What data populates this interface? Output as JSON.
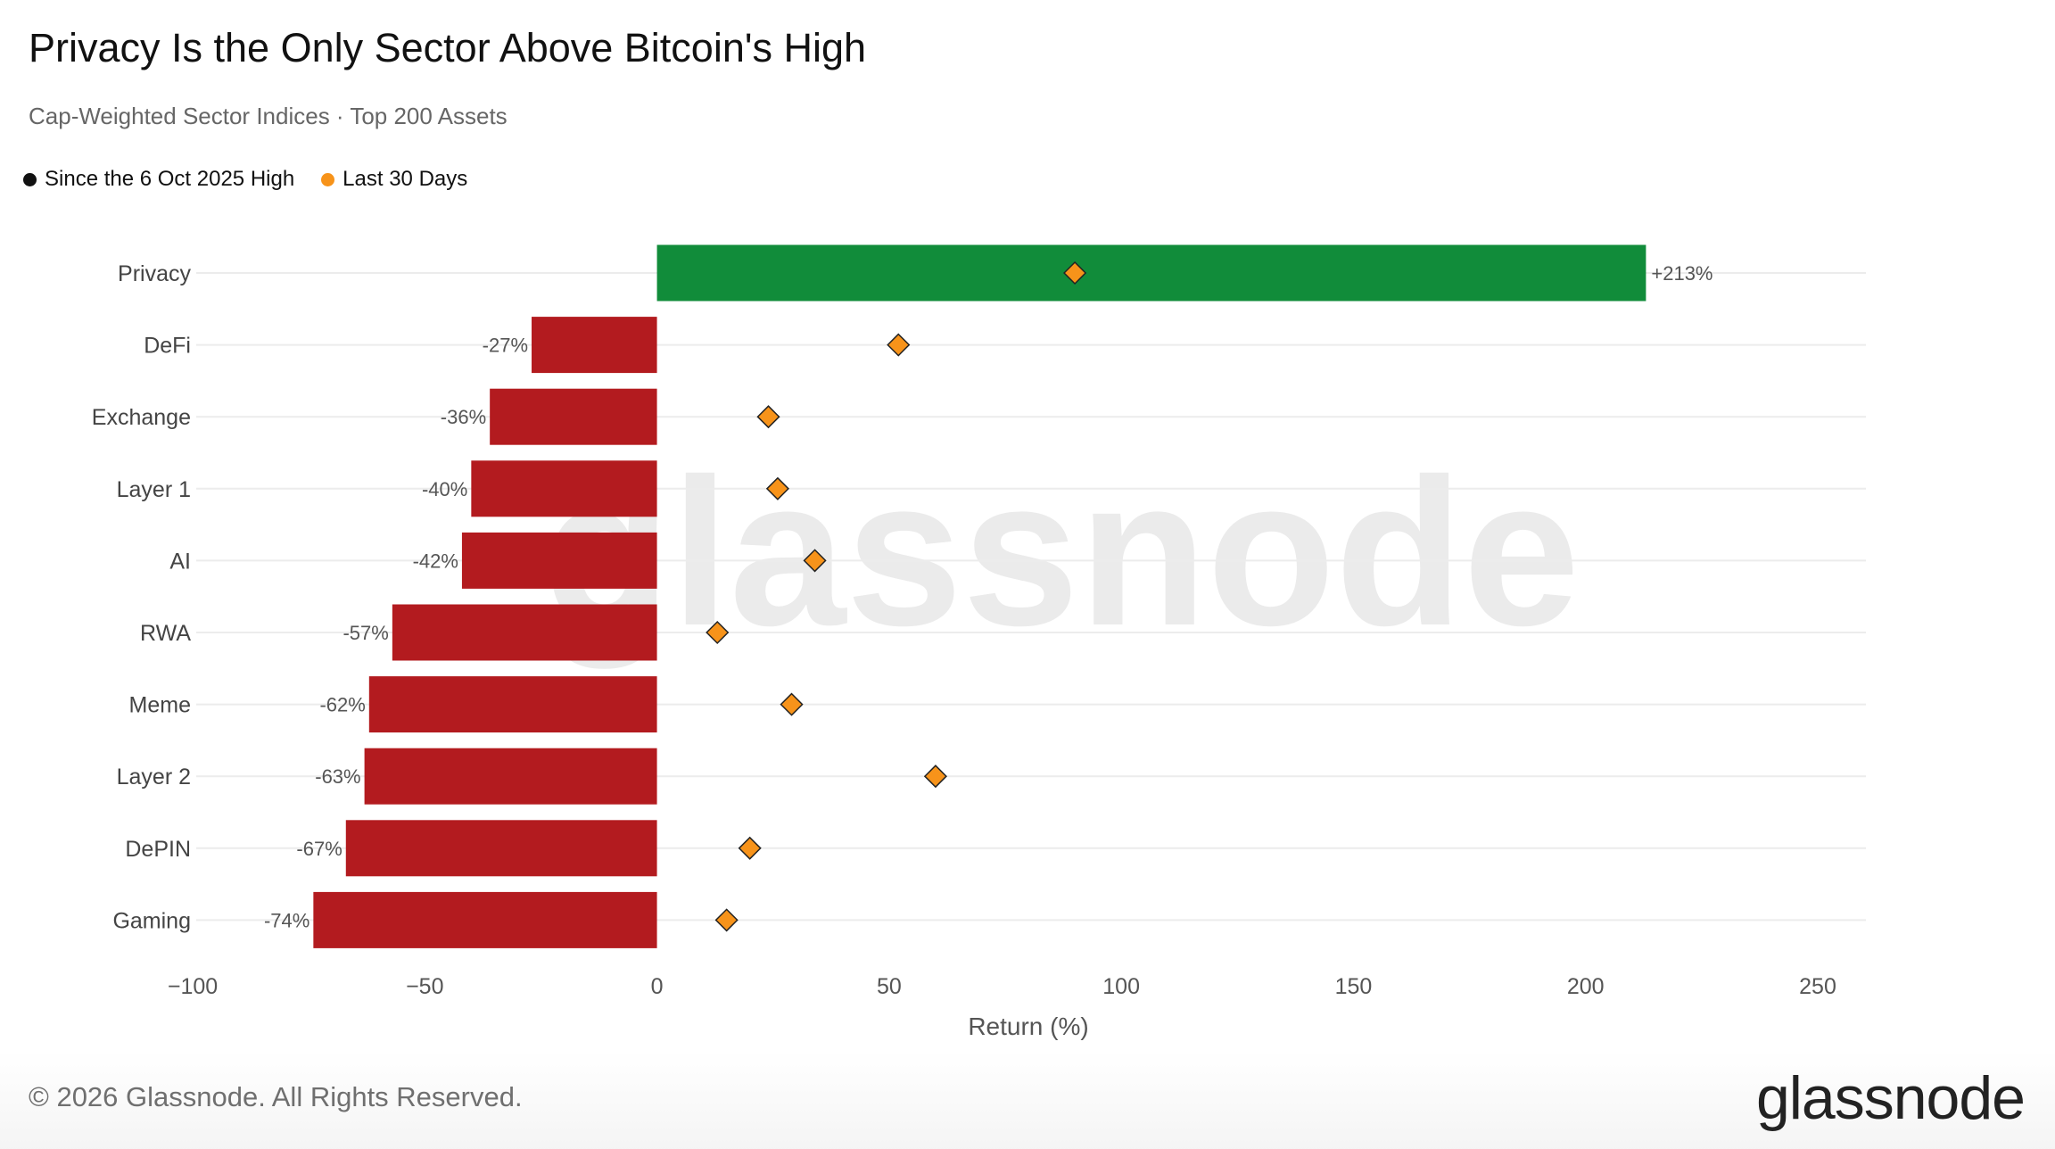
{
  "header": {
    "title": "Privacy Is the Only Sector Above Bitcoin's High",
    "subtitle": "Cap-Weighted Sector Indices · Top 200 Assets"
  },
  "legend": [
    {
      "label": "Since the 6 Oct 2025 High",
      "color": "#111111"
    },
    {
      "label": "Last 30 Days",
      "color": "#f7931a"
    }
  ],
  "colors": {
    "positive_bar": "#118c3a",
    "negative_bar": "#b31b1f",
    "marker": "#f7931a",
    "gridline": "#ececec",
    "watermark": "#ebebeb"
  },
  "watermark": "glassnode",
  "footer": {
    "copyright": "© 2026 Glassnode. All Rights Reserved.",
    "logo": "glassnode"
  },
  "chart_data": {
    "type": "bar",
    "orientation": "horizontal",
    "categories": [
      "Privacy",
      "DeFi",
      "Exchange",
      "Layer 1",
      "AI",
      "RWA",
      "Meme",
      "Layer 2",
      "DePIN",
      "Gaming"
    ],
    "series": [
      {
        "name": "Since the 6 Oct 2025 High",
        "type": "bar",
        "values": [
          213,
          -27,
          -36,
          -40,
          -42,
          -57,
          -62,
          -63,
          -67,
          -74
        ],
        "labels": [
          "+213%",
          "-27%",
          "-36%",
          "-40%",
          "-42%",
          "-57%",
          "-62%",
          "-63%",
          "-67%",
          "-74%"
        ]
      },
      {
        "name": "Last 30 Days",
        "type": "marker",
        "values": [
          90,
          52,
          24,
          26,
          34,
          13,
          29,
          60,
          20,
          15
        ]
      }
    ],
    "xlabel": "Return (%)",
    "xlim": [
      -100,
      250
    ],
    "xticks": [
      -100,
      -50,
      0,
      50,
      100,
      150,
      200,
      250
    ],
    "xtick_labels": [
      "−100",
      "−50",
      "0",
      "50",
      "100",
      "150",
      "200",
      "250"
    ],
    "grid": "horizontal",
    "legend_position": "top-left"
  }
}
